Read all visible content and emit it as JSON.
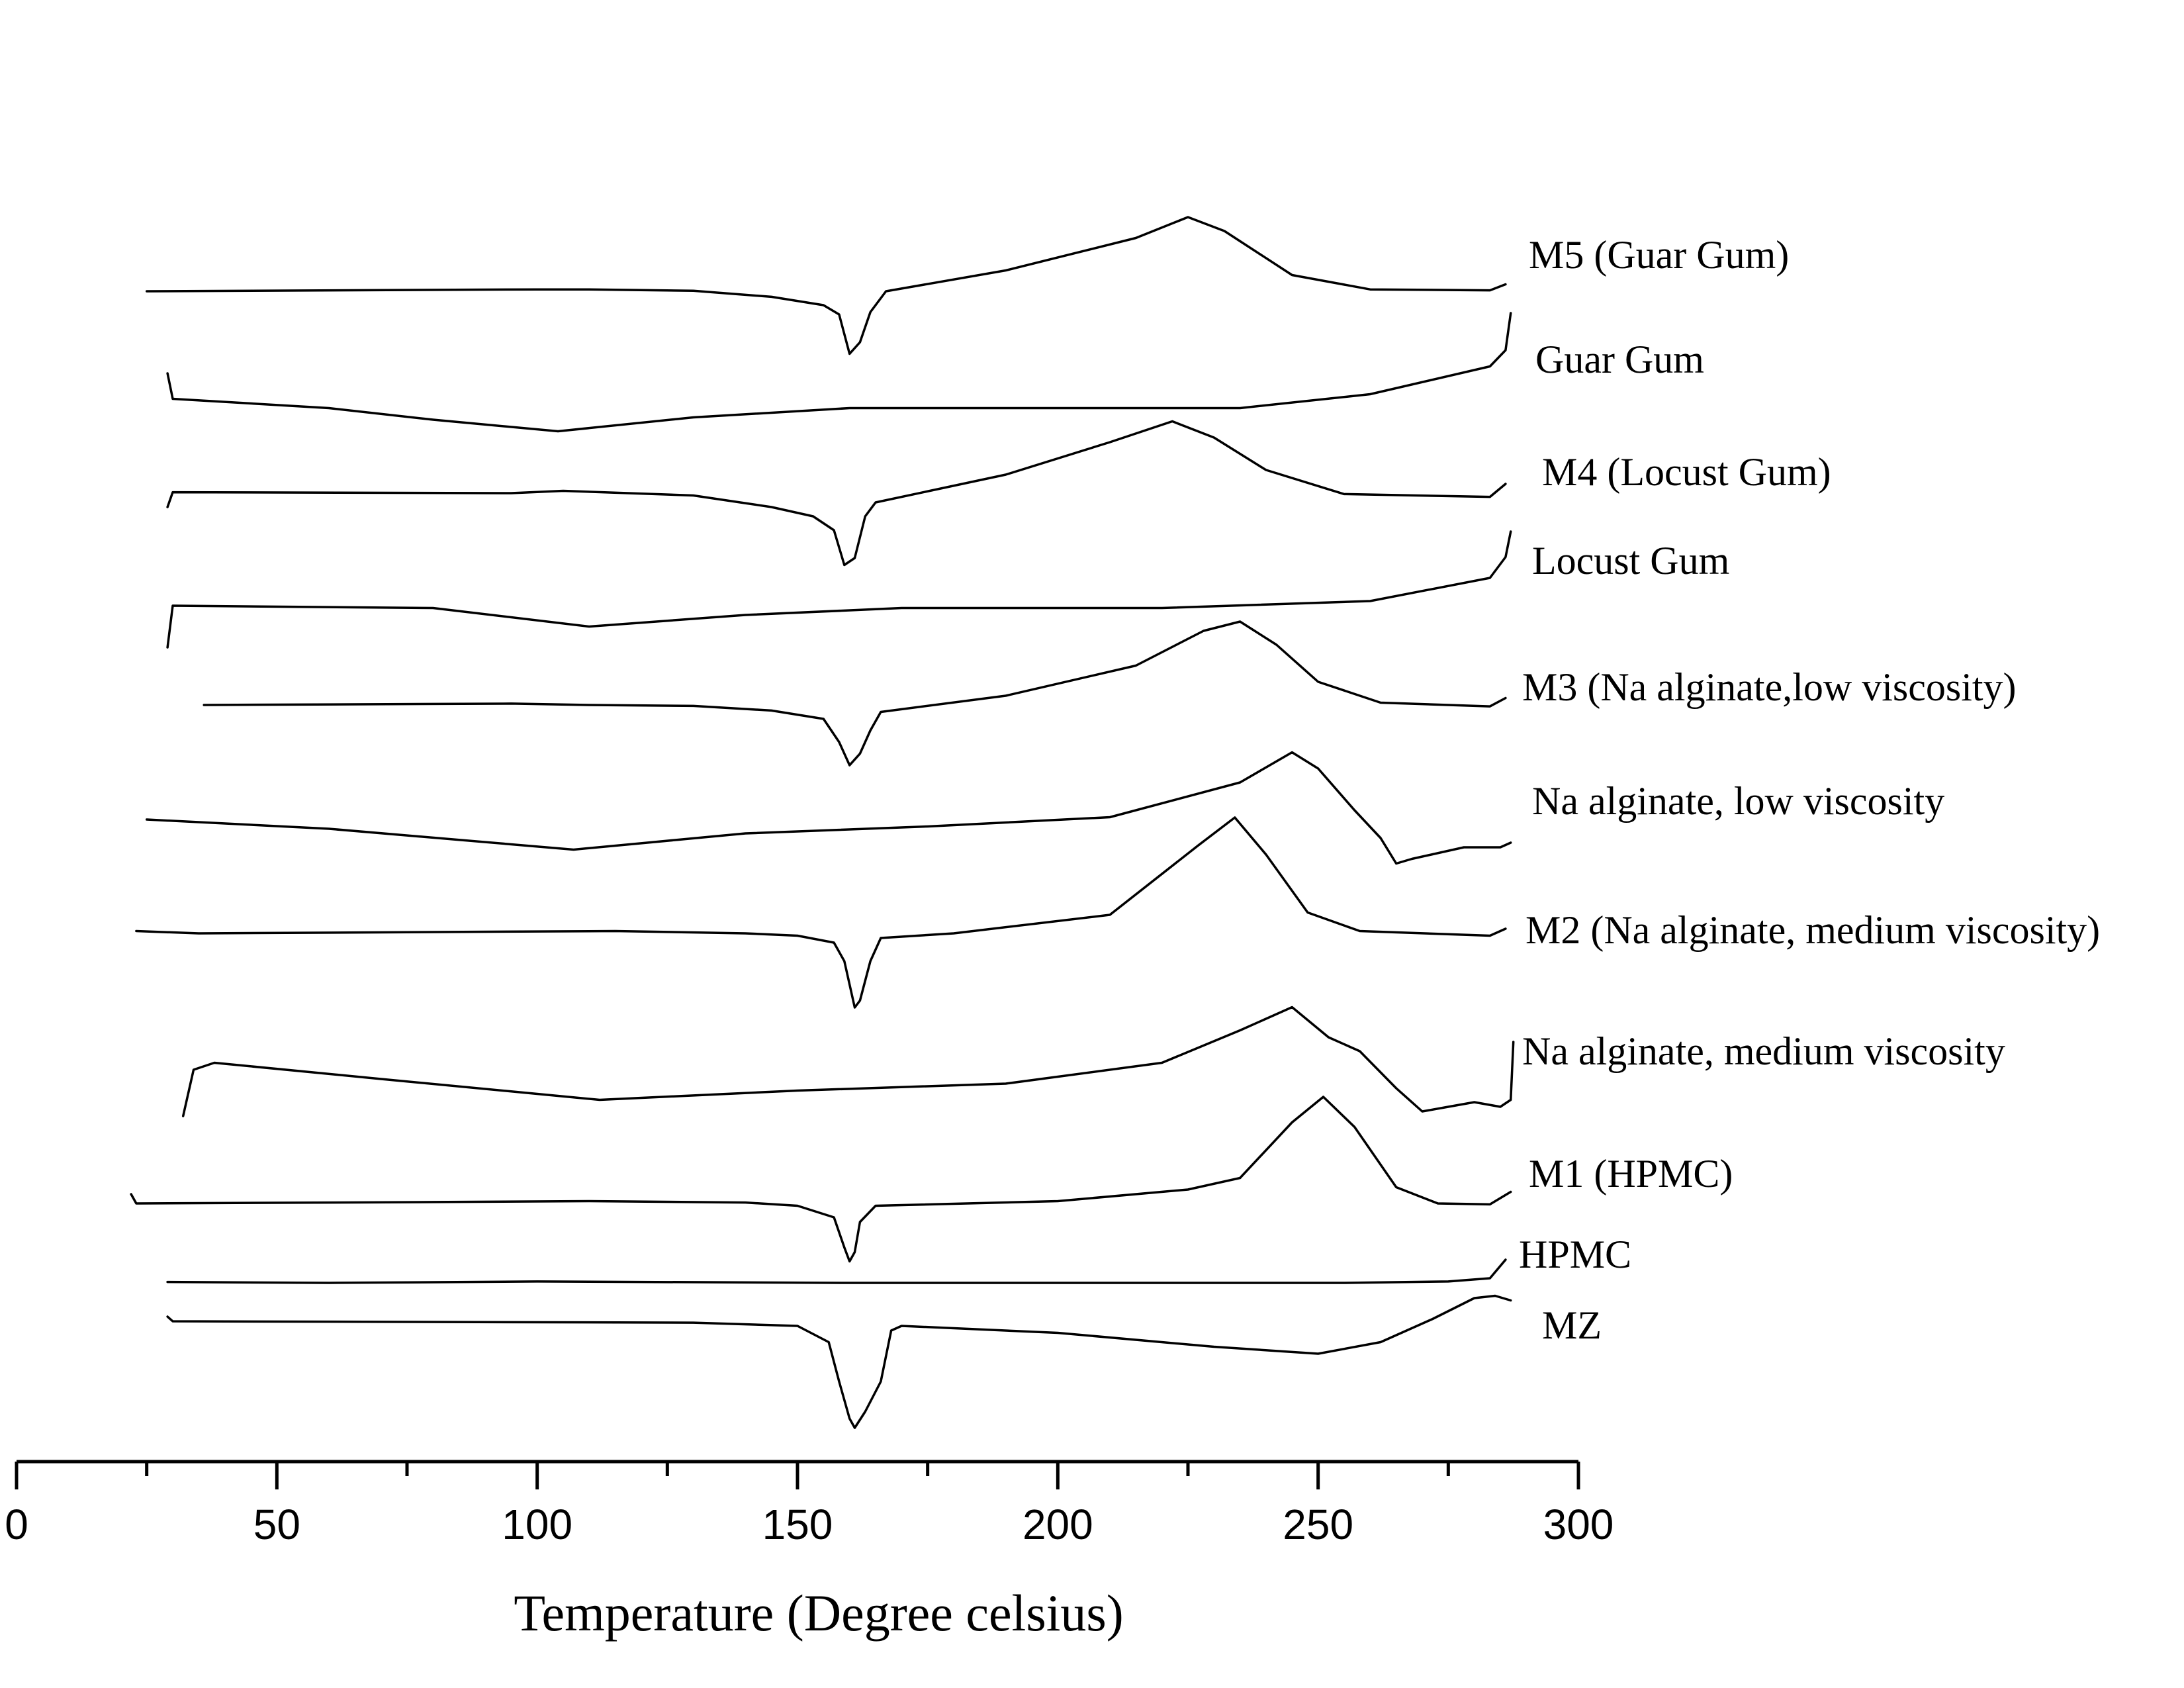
{
  "chart_data": {
    "type": "line",
    "title": "",
    "xlabel": "Temperature (Degree celsius)",
    "ylabel": "",
    "xlim": [
      0,
      300
    ],
    "x_major_ticks": [
      0,
      50,
      100,
      150,
      200,
      250,
      300
    ],
    "x_minor_ticks": [
      25,
      75,
      125,
      175,
      225,
      275
    ],
    "y_axis_shown": false,
    "grid": false,
    "legend": "inline labels at right end of each curve",
    "series": [
      {
        "name": "M5 (Guar Gum)",
        "points": [
          [
            25,
            0
          ],
          [
            100,
            0.04
          ],
          [
            110,
            0.04
          ],
          [
            130,
            0.01
          ],
          [
            145,
            -0.12
          ],
          [
            155,
            -0.3
          ],
          [
            158,
            -0.5
          ],
          [
            160,
            -1.35
          ],
          [
            162,
            -1.1
          ],
          [
            164,
            -0.45
          ],
          [
            167,
            0
          ],
          [
            190,
            0.45
          ],
          [
            215,
            1.15
          ],
          [
            225,
            1.6
          ],
          [
            232,
            1.3
          ],
          [
            245,
            0.35
          ],
          [
            260,
            0.04
          ],
          [
            283,
            0.02
          ],
          [
            286,
            0.15
          ]
        ]
      },
      {
        "name": "Guar Gum",
        "points": [
          [
            29,
            0.8
          ],
          [
            30,
            0.25
          ],
          [
            60,
            0.05
          ],
          [
            80,
            -0.2
          ],
          [
            104,
            -0.45
          ],
          [
            130,
            -0.15
          ],
          [
            160,
            0.05
          ],
          [
            200,
            0.05
          ],
          [
            235,
            0.05
          ],
          [
            260,
            0.35
          ],
          [
            283,
            0.95
          ],
          [
            286,
            1.3
          ],
          [
            287,
            2.1
          ]
        ]
      },
      {
        "name": "M4 (Locust Gum)",
        "points": [
          [
            29,
            -0.2
          ],
          [
            30,
            0.12
          ],
          [
            95,
            0.1
          ],
          [
            105,
            0.15
          ],
          [
            130,
            0.05
          ],
          [
            145,
            -0.2
          ],
          [
            153,
            -0.4
          ],
          [
            157,
            -0.7
          ],
          [
            159,
            -1.45
          ],
          [
            161,
            -1.3
          ],
          [
            163,
            -0.4
          ],
          [
            165,
            -0.1
          ],
          [
            190,
            0.5
          ],
          [
            210,
            1.2
          ],
          [
            222,
            1.65
          ],
          [
            230,
            1.3
          ],
          [
            240,
            0.6
          ],
          [
            255,
            0.08
          ],
          [
            283,
            0.02
          ],
          [
            286,
            0.3
          ]
        ]
      },
      {
        "name": "Locust Gum",
        "points": [
          [
            29,
            -0.8
          ],
          [
            30,
            0.1
          ],
          [
            80,
            0.05
          ],
          [
            110,
            -0.35
          ],
          [
            140,
            -0.1
          ],
          [
            170,
            0.05
          ],
          [
            220,
            0.05
          ],
          [
            260,
            0.2
          ],
          [
            283,
            0.7
          ],
          [
            286,
            1.15
          ],
          [
            287,
            1.7
          ]
        ]
      },
      {
        "name": "M3 (Na alginate,low viscosity)",
        "points": [
          [
            36,
            0
          ],
          [
            95,
            0.03
          ],
          [
            110,
            0
          ],
          [
            130,
            -0.02
          ],
          [
            145,
            -0.12
          ],
          [
            155,
            -0.3
          ],
          [
            158,
            -0.8
          ],
          [
            160,
            -1.3
          ],
          [
            162,
            -1.05
          ],
          [
            164,
            -0.55
          ],
          [
            166,
            -0.15
          ],
          [
            190,
            0.2
          ],
          [
            215,
            0.85
          ],
          [
            228,
            1.6
          ],
          [
            235,
            1.8
          ],
          [
            242,
            1.3
          ],
          [
            250,
            0.5
          ],
          [
            262,
            0.05
          ],
          [
            283,
            -0.03
          ],
          [
            286,
            0.15
          ]
        ]
      },
      {
        "name": "Na alginate, low viscosity",
        "points": [
          [
            25,
            0.1
          ],
          [
            60,
            -0.1
          ],
          [
            107,
            -0.55
          ],
          [
            140,
            -0.2
          ],
          [
            175,
            -0.05
          ],
          [
            210,
            0.15
          ],
          [
            235,
            0.9
          ],
          [
            245,
            1.55
          ],
          [
            250,
            1.2
          ],
          [
            257,
            0.3
          ],
          [
            262,
            -0.3
          ],
          [
            265,
            -0.85
          ],
          [
            268,
            -0.75
          ],
          [
            278,
            -0.5
          ],
          [
            285,
            -0.5
          ],
          [
            287,
            -0.4
          ]
        ]
      },
      {
        "name": "M2 (Na alginate, medium viscosity)",
        "points": [
          [
            23,
            0.05
          ],
          [
            35,
            0
          ],
          [
            115,
            0.05
          ],
          [
            140,
            0
          ],
          [
            150,
            -0.05
          ],
          [
            157,
            -0.2
          ],
          [
            159,
            -0.6
          ],
          [
            161,
            -1.6
          ],
          [
            162,
            -1.45
          ],
          [
            164,
            -0.6
          ],
          [
            166,
            -0.1
          ],
          [
            180,
            0
          ],
          [
            210,
            0.4
          ],
          [
            227,
            1.9
          ],
          [
            234,
            2.5
          ],
          [
            240,
            1.7
          ],
          [
            248,
            0.45
          ],
          [
            258,
            0.05
          ],
          [
            283,
            -0.05
          ],
          [
            286,
            0.1
          ]
        ]
      },
      {
        "name": "Na alginate, medium viscosity",
        "points": [
          [
            32,
            -0.8
          ],
          [
            34,
            0.2
          ],
          [
            38,
            0.35
          ],
          [
            70,
            0
          ],
          [
            112,
            -0.45
          ],
          [
            150,
            -0.25
          ],
          [
            190,
            -0.1
          ],
          [
            220,
            0.35
          ],
          [
            235,
            1.05
          ],
          [
            245,
            1.55
          ],
          [
            252,
            0.9
          ],
          [
            258,
            0.6
          ],
          [
            265,
            -0.2
          ],
          [
            270,
            -0.7
          ],
          [
            275,
            -0.6
          ],
          [
            280,
            -0.5
          ],
          [
            285,
            -0.6
          ],
          [
            287,
            -0.45
          ],
          [
            287.5,
            0.8
          ]
        ]
      },
      {
        "name": "M1 (HPMC)",
        "points": [
          [
            22,
            0.2
          ],
          [
            23,
            0
          ],
          [
            80,
            0.03
          ],
          [
            110,
            0.05
          ],
          [
            140,
            0.02
          ],
          [
            150,
            -0.05
          ],
          [
            157,
            -0.3
          ],
          [
            159,
            -0.95
          ],
          [
            160,
            -1.25
          ],
          [
            161,
            -1.05
          ],
          [
            162,
            -0.4
          ],
          [
            165,
            -0.05
          ],
          [
            200,
            0.05
          ],
          [
            225,
            0.3
          ],
          [
            235,
            0.55
          ],
          [
            245,
            1.75
          ],
          [
            251,
            2.3
          ],
          [
            257,
            1.65
          ],
          [
            265,
            0.35
          ],
          [
            273,
            0
          ],
          [
            283,
            -0.02
          ],
          [
            287,
            0.25
          ]
        ]
      },
      {
        "name": "HPMC",
        "points": [
          [
            29,
            0.02
          ],
          [
            60,
            0
          ],
          [
            100,
            0.03
          ],
          [
            160,
            0
          ],
          [
            220,
            0
          ],
          [
            255,
            0
          ],
          [
            275,
            0.03
          ],
          [
            283,
            0.1
          ],
          [
            286,
            0.5
          ]
        ]
      },
      {
        "name": "MZ",
        "points": [
          [
            29,
            0.1
          ],
          [
            30,
            0
          ],
          [
            130,
            -0.03
          ],
          [
            150,
            -0.1
          ],
          [
            156,
            -0.45
          ],
          [
            158,
            -1.3
          ],
          [
            160,
            -2.1
          ],
          [
            161,
            -2.3
          ],
          [
            163,
            -1.95
          ],
          [
            166,
            -1.3
          ],
          [
            168,
            -0.2
          ],
          [
            170,
            -0.1
          ],
          [
            200,
            -0.25
          ],
          [
            230,
            -0.55
          ],
          [
            250,
            -0.7
          ],
          [
            262,
            -0.45
          ],
          [
            272,
            0.05
          ],
          [
            280,
            0.5
          ],
          [
            284,
            0.55
          ],
          [
            287,
            0.45
          ]
        ]
      }
    ]
  }
}
